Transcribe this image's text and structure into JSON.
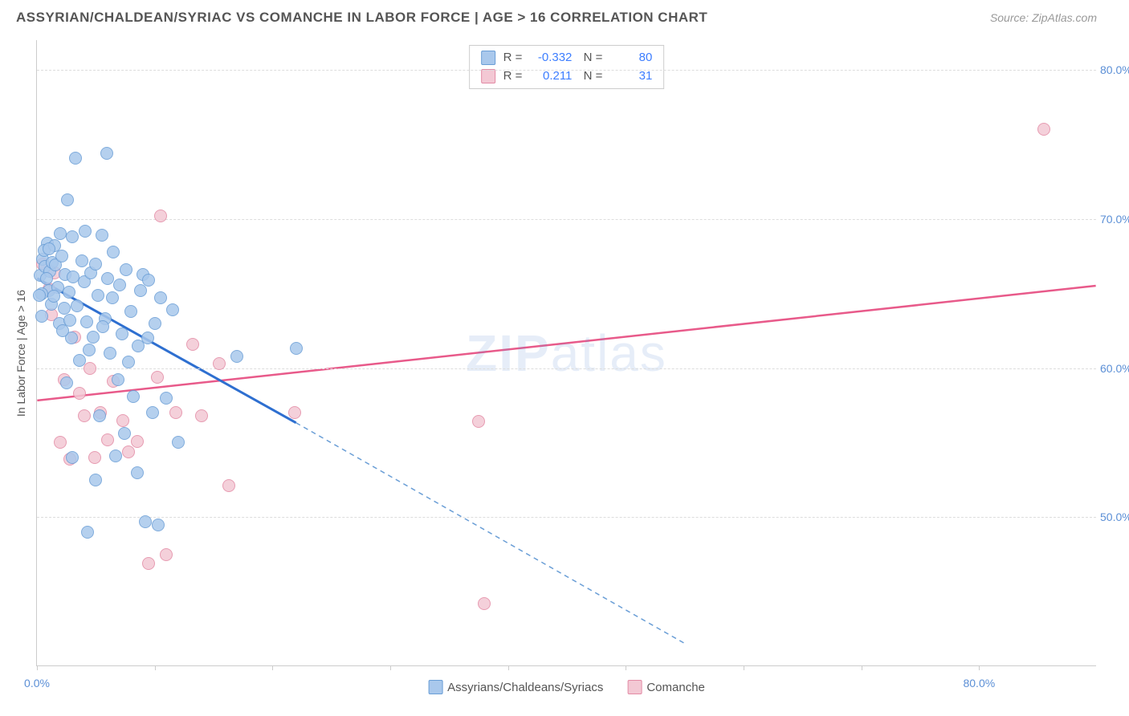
{
  "header": {
    "title": "ASSYRIAN/CHALDEAN/SYRIAC VS COMANCHE IN LABOR FORCE | AGE > 16 CORRELATION CHART",
    "source": "Source: ZipAtlas.com"
  },
  "chart": {
    "type": "scatter",
    "y_axis_title": "In Labor Force | Age > 16",
    "watermark": {
      "zip": "ZIP",
      "atlas": "atlas"
    },
    "xlim": [
      0,
      90
    ],
    "ylim": [
      40,
      82
    ],
    "x_ticks": [
      0,
      10,
      20,
      30,
      40,
      50,
      60,
      70,
      80
    ],
    "x_tick_labels": {
      "0": "0.0%",
      "80": "80.0%"
    },
    "y_ticks": [
      50,
      60,
      70,
      80
    ],
    "y_tick_labels": {
      "50": "50.0%",
      "60": "60.0%",
      "70": "70.0%",
      "80": "80.0%"
    },
    "grid_color": "#dddddd",
    "background_color": "#ffffff",
    "axis_color": "#cccccc",
    "tick_label_color": "#5b8fd6",
    "series": {
      "assyrians": {
        "label": "Assyrians/Chaldeans/Syriacs",
        "fill": "#a9c8ec",
        "stroke": "#6a9ed6",
        "marker_size": 16,
        "R": "-0.332",
        "N": "80",
        "trend": {
          "stroke": "#2e6fd0",
          "width": 3,
          "dash_stroke": "#6a9ed6",
          "dash_width": 1.5,
          "solid_x_range": [
            0,
            22
          ],
          "y_at_x0": 66.0,
          "y_at_x22": 56.3,
          "y_at_x55": 41.5
        },
        "points": [
          {
            "x": 0.3,
            "y": 66.2
          },
          {
            "x": 0.5,
            "y": 67.3
          },
          {
            "x": 0.7,
            "y": 66.8
          },
          {
            "x": 0.9,
            "y": 68.4
          },
          {
            "x": 1.0,
            "y": 65.2
          },
          {
            "x": 1.1,
            "y": 66.5
          },
          {
            "x": 0.4,
            "y": 65.0
          },
          {
            "x": 0.6,
            "y": 67.9
          },
          {
            "x": 0.8,
            "y": 66.0
          },
          {
            "x": 1.2,
            "y": 64.3
          },
          {
            "x": 1.3,
            "y": 67.1
          },
          {
            "x": 1.5,
            "y": 68.2
          },
          {
            "x": 1.6,
            "y": 66.9
          },
          {
            "x": 1.8,
            "y": 65.4
          },
          {
            "x": 1.9,
            "y": 63.0
          },
          {
            "x": 2.0,
            "y": 69.0
          },
          {
            "x": 2.1,
            "y": 67.5
          },
          {
            "x": 2.3,
            "y": 64.0
          },
          {
            "x": 2.4,
            "y": 66.3
          },
          {
            "x": 2.6,
            "y": 71.3
          },
          {
            "x": 2.7,
            "y": 65.1
          },
          {
            "x": 2.8,
            "y": 63.2
          },
          {
            "x": 2.9,
            "y": 62.0
          },
          {
            "x": 3.0,
            "y": 68.8
          },
          {
            "x": 3.1,
            "y": 66.1
          },
          {
            "x": 3.3,
            "y": 74.1
          },
          {
            "x": 3.4,
            "y": 64.2
          },
          {
            "x": 3.6,
            "y": 60.5
          },
          {
            "x": 3.8,
            "y": 67.2
          },
          {
            "x": 4.0,
            "y": 65.8
          },
          {
            "x": 4.1,
            "y": 69.2
          },
          {
            "x": 4.2,
            "y": 63.1
          },
          {
            "x": 4.4,
            "y": 61.2
          },
          {
            "x": 4.6,
            "y": 66.4
          },
          {
            "x": 4.8,
            "y": 62.1
          },
          {
            "x": 5.0,
            "y": 67.0
          },
          {
            "x": 5.2,
            "y": 64.9
          },
          {
            "x": 5.3,
            "y": 56.8
          },
          {
            "x": 5.5,
            "y": 68.9
          },
          {
            "x": 5.8,
            "y": 63.3
          },
          {
            "x": 5.9,
            "y": 74.4
          },
          {
            "x": 6.0,
            "y": 66.0
          },
          {
            "x": 6.2,
            "y": 61.0
          },
          {
            "x": 6.4,
            "y": 64.7
          },
          {
            "x": 6.7,
            "y": 54.1
          },
          {
            "x": 6.9,
            "y": 59.2
          },
          {
            "x": 7.0,
            "y": 65.6
          },
          {
            "x": 7.2,
            "y": 62.3
          },
          {
            "x": 7.4,
            "y": 55.6
          },
          {
            "x": 7.6,
            "y": 66.6
          },
          {
            "x": 7.8,
            "y": 60.4
          },
          {
            "x": 8.0,
            "y": 63.8
          },
          {
            "x": 8.2,
            "y": 58.1
          },
          {
            "x": 8.5,
            "y": 53.0
          },
          {
            "x": 8.8,
            "y": 65.2
          },
          {
            "x": 9.0,
            "y": 66.3
          },
          {
            "x": 9.2,
            "y": 49.7
          },
          {
            "x": 9.4,
            "y": 62.0
          },
          {
            "x": 9.8,
            "y": 57.0
          },
          {
            "x": 10.0,
            "y": 63.0
          },
          {
            "x": 10.3,
            "y": 49.5
          },
          {
            "x": 10.5,
            "y": 64.7
          },
          {
            "x": 11.0,
            "y": 58.0
          },
          {
            "x": 11.5,
            "y": 63.9
          },
          {
            "x": 12.0,
            "y": 55.0
          },
          {
            "x": 9.5,
            "y": 65.9
          },
          {
            "x": 8.6,
            "y": 61.5
          },
          {
            "x": 6.5,
            "y": 67.8
          },
          {
            "x": 3.0,
            "y": 54.0
          },
          {
            "x": 2.2,
            "y": 62.5
          },
          {
            "x": 0.2,
            "y": 64.9
          },
          {
            "x": 0.4,
            "y": 63.5
          },
          {
            "x": 1.0,
            "y": 68.0
          },
          {
            "x": 1.4,
            "y": 64.8
          },
          {
            "x": 5.6,
            "y": 62.8
          },
          {
            "x": 17.0,
            "y": 60.8
          },
          {
            "x": 22.0,
            "y": 61.3
          },
          {
            "x": 4.3,
            "y": 49.0
          },
          {
            "x": 5.0,
            "y": 52.5
          },
          {
            "x": 2.5,
            "y": 59.0
          }
        ]
      },
      "comanche": {
        "label": "Comanche",
        "fill": "#f3c8d4",
        "stroke": "#e38ba5",
        "marker_size": 16,
        "R": "0.211",
        "N": "31",
        "trend": {
          "stroke": "#e85a8a",
          "width": 2.5,
          "y_at_x0": 57.8,
          "y_at_x90": 65.5
        },
        "points": [
          {
            "x": 0.5,
            "y": 67.0
          },
          {
            "x": 1.0,
            "y": 65.3
          },
          {
            "x": 1.2,
            "y": 63.6
          },
          {
            "x": 1.5,
            "y": 66.4
          },
          {
            "x": 2.0,
            "y": 55.0
          },
          {
            "x": 2.3,
            "y": 59.2
          },
          {
            "x": 2.8,
            "y": 53.9
          },
          {
            "x": 3.2,
            "y": 62.1
          },
          {
            "x": 3.6,
            "y": 58.3
          },
          {
            "x": 4.0,
            "y": 56.8
          },
          {
            "x": 4.5,
            "y": 60.0
          },
          {
            "x": 4.9,
            "y": 54.0
          },
          {
            "x": 5.4,
            "y": 57.0
          },
          {
            "x": 6.0,
            "y": 55.2
          },
          {
            "x": 6.5,
            "y": 59.1
          },
          {
            "x": 7.3,
            "y": 56.5
          },
          {
            "x": 7.8,
            "y": 54.4
          },
          {
            "x": 8.5,
            "y": 55.1
          },
          {
            "x": 9.5,
            "y": 46.9
          },
          {
            "x": 10.2,
            "y": 59.4
          },
          {
            "x": 10.5,
            "y": 70.2
          },
          {
            "x": 11.0,
            "y": 47.5
          },
          {
            "x": 11.8,
            "y": 57.0
          },
          {
            "x": 13.2,
            "y": 61.6
          },
          {
            "x": 14.0,
            "y": 56.8
          },
          {
            "x": 15.5,
            "y": 60.3
          },
          {
            "x": 16.3,
            "y": 52.1
          },
          {
            "x": 21.9,
            "y": 57.0
          },
          {
            "x": 37.5,
            "y": 56.4
          },
          {
            "x": 38.0,
            "y": 44.2
          },
          {
            "x": 85.5,
            "y": 76.0
          }
        ]
      }
    }
  }
}
